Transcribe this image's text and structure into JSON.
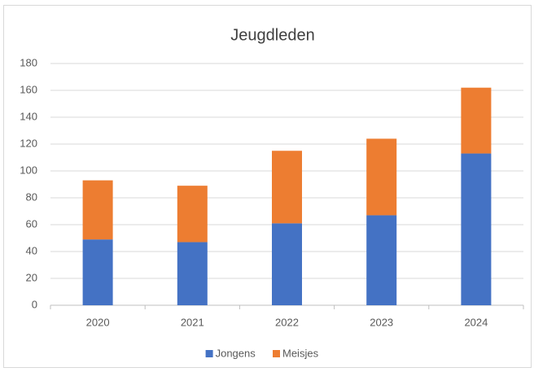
{
  "chart_data": {
    "type": "bar",
    "stacked": true,
    "title": "Jeugdleden",
    "categories": [
      "2020",
      "2021",
      "2022",
      "2023",
      "2024"
    ],
    "series": [
      {
        "name": "Jongens",
        "color": "#4472c4",
        "values": [
          49,
          47,
          61,
          67,
          113
        ]
      },
      {
        "name": "Meisjes",
        "color": "#ed7d31",
        "values": [
          44,
          42,
          54,
          57,
          49
        ]
      }
    ],
    "ylim": [
      0,
      180
    ],
    "yticks": [
      0,
      20,
      40,
      60,
      80,
      100,
      120,
      140,
      160,
      180
    ],
    "grid": true,
    "legend": "bottom"
  }
}
